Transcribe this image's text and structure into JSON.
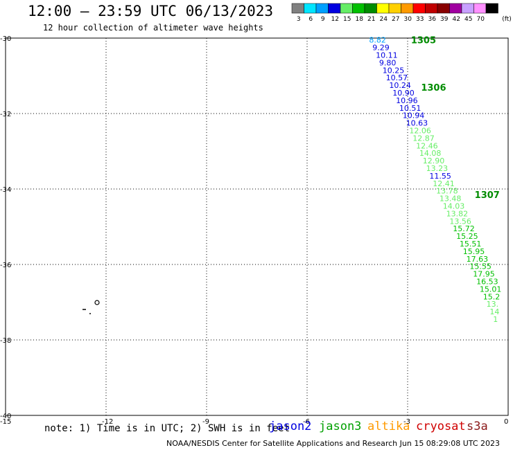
{
  "header": {
    "title": "12:00 – 23:59 UTC 06/13/2023",
    "subtitle": "12 hour collection of altimeter wave heights"
  },
  "legend": {
    "unit": "(ft)",
    "bins": [
      {
        "label": "3",
        "color": "#808080"
      },
      {
        "label": "6",
        "color": "#00e5ff"
      },
      {
        "label": "9",
        "color": "#00a0ff"
      },
      {
        "label": "12",
        "color": "#0000e0"
      },
      {
        "label": "15",
        "color": "#66ee66"
      },
      {
        "label": "18",
        "color": "#00c000"
      },
      {
        "label": "21",
        "color": "#008c00"
      },
      {
        "label": "24",
        "color": "#ffff00"
      },
      {
        "label": "27",
        "color": "#ffd000"
      },
      {
        "label": "30",
        "color": "#ff9a00"
      },
      {
        "label": "33",
        "color": "#ff0000"
      },
      {
        "label": "36",
        "color": "#c00000"
      },
      {
        "label": "39",
        "color": "#880000"
      },
      {
        "label": "42",
        "color": "#a000a0"
      },
      {
        "label": "45",
        "color": "#c8a0ff"
      },
      {
        "label": "70",
        "color": "#ff90ff"
      },
      {
        "label": "",
        "color": "#000000"
      }
    ]
  },
  "axes": {
    "lon_ticks": [
      "-15",
      "-12",
      "-9",
      "-6",
      "-3",
      "0"
    ],
    "lat_ticks": [
      "-30",
      "-32",
      "-34",
      "-36",
      "-38",
      "-40"
    ],
    "lon_range": [
      -15,
      0
    ],
    "lat_range": [
      -30,
      -40
    ],
    "grid": true
  },
  "times": [
    {
      "label": "1305",
      "lon": -2.9,
      "lat": -30.05
    },
    {
      "label": "1306",
      "lon": -2.6,
      "lat": -31.3
    },
    {
      "label": "1307",
      "lon": -1.0,
      "lat": -34.15
    }
  ],
  "track": [
    {
      "v": "8.82",
      "lon": -4.15,
      "lat": -30.05,
      "c": "#00a0ff"
    },
    {
      "v": "9.29",
      "lon": -4.05,
      "lat": -30.25,
      "c": "#0000e0"
    },
    {
      "v": "10.11",
      "lon": -3.95,
      "lat": -30.45,
      "c": "#0000e0"
    },
    {
      "v": "9.80",
      "lon": -3.85,
      "lat": -30.65,
      "c": "#0000e0"
    },
    {
      "v": "10.25",
      "lon": -3.75,
      "lat": -30.85,
      "c": "#0000e0"
    },
    {
      "v": "10.57",
      "lon": -3.65,
      "lat": -31.05,
      "c": "#0000e0"
    },
    {
      "v": "10.24",
      "lon": -3.55,
      "lat": -31.25,
      "c": "#0000e0"
    },
    {
      "v": "10.90",
      "lon": -3.45,
      "lat": -31.45,
      "c": "#0000e0"
    },
    {
      "v": "10.96",
      "lon": -3.35,
      "lat": -31.65,
      "c": "#0000e0"
    },
    {
      "v": "10.51",
      "lon": -3.25,
      "lat": -31.85,
      "c": "#0000e0"
    },
    {
      "v": "10.94",
      "lon": -3.15,
      "lat": -32.05,
      "c": "#0000e0"
    },
    {
      "v": "10.63",
      "lon": -3.05,
      "lat": -32.25,
      "c": "#0000e0"
    },
    {
      "v": "12.06",
      "lon": -2.95,
      "lat": -32.45,
      "c": "#66ee66"
    },
    {
      "v": "12.87",
      "lon": -2.85,
      "lat": -32.65,
      "c": "#66ee66"
    },
    {
      "v": "12.46",
      "lon": -2.75,
      "lat": -32.85,
      "c": "#66ee66"
    },
    {
      "v": "14.08",
      "lon": -2.65,
      "lat": -33.05,
      "c": "#66ee66"
    },
    {
      "v": "12.90",
      "lon": -2.55,
      "lat": -33.25,
      "c": "#66ee66"
    },
    {
      "v": "13.23",
      "lon": -2.45,
      "lat": -33.45,
      "c": "#66ee66"
    },
    {
      "v": "11.55",
      "lon": -2.35,
      "lat": -33.65,
      "c": "#0000e0"
    },
    {
      "v": "12.41",
      "lon": -2.25,
      "lat": -33.85,
      "c": "#66ee66"
    },
    {
      "v": "13.78",
      "lon": -2.15,
      "lat": -34.05,
      "c": "#66ee66"
    },
    {
      "v": "13.48",
      "lon": -2.05,
      "lat": -34.25,
      "c": "#66ee66"
    },
    {
      "v": "14.03",
      "lon": -1.95,
      "lat": -34.45,
      "c": "#66ee66"
    },
    {
      "v": "13.82",
      "lon": -1.85,
      "lat": -34.65,
      "c": "#66ee66"
    },
    {
      "v": "13.56",
      "lon": -1.75,
      "lat": -34.85,
      "c": "#66ee66"
    },
    {
      "v": "15.72",
      "lon": -1.65,
      "lat": -35.05,
      "c": "#00c000"
    },
    {
      "v": "15.25",
      "lon": -1.55,
      "lat": -35.25,
      "c": "#00c000"
    },
    {
      "v": "15.51",
      "lon": -1.45,
      "lat": -35.45,
      "c": "#00c000"
    },
    {
      "v": "15.95",
      "lon": -1.35,
      "lat": -35.65,
      "c": "#00c000"
    },
    {
      "v": "17.63",
      "lon": -1.25,
      "lat": -35.85,
      "c": "#00c000"
    },
    {
      "v": "15.55",
      "lon": -1.15,
      "lat": -36.05,
      "c": "#00c000"
    },
    {
      "v": "17.95",
      "lon": -1.05,
      "lat": -36.25,
      "c": "#00c000"
    },
    {
      "v": "16.53",
      "lon": -0.95,
      "lat": -36.45,
      "c": "#00c000"
    },
    {
      "v": "15.01",
      "lon": -0.85,
      "lat": -36.65,
      "c": "#00c000"
    },
    {
      "v": "15.2",
      "lon": -0.75,
      "lat": -36.85,
      "c": "#00c000"
    },
    {
      "v": "13.",
      "lon": -0.65,
      "lat": -37.05,
      "c": "#66ee66"
    },
    {
      "v": "14",
      "lon": -0.55,
      "lat": -37.25,
      "c": "#66ee66"
    },
    {
      "v": "1",
      "lon": -0.45,
      "lat": -37.45,
      "c": "#66ee66"
    }
  ],
  "footer": {
    "note": "note: 1) Time is in UTC; 2) SWH is in feet",
    "satellites": [
      {
        "name": "jason2",
        "color": "#0000e0"
      },
      {
        "name": "jason3",
        "color": "#00a000"
      },
      {
        "name": "altika",
        "color": "#ff9a00"
      },
      {
        "name": "cryosat",
        "color": "#d00000"
      },
      {
        "name": "s3a",
        "color": "#8b1a1a"
      }
    ],
    "credit": "NOAA/NESDIS Center for Satellite Applications and Research    Jun 15 08:29:08 UTC 2023"
  }
}
